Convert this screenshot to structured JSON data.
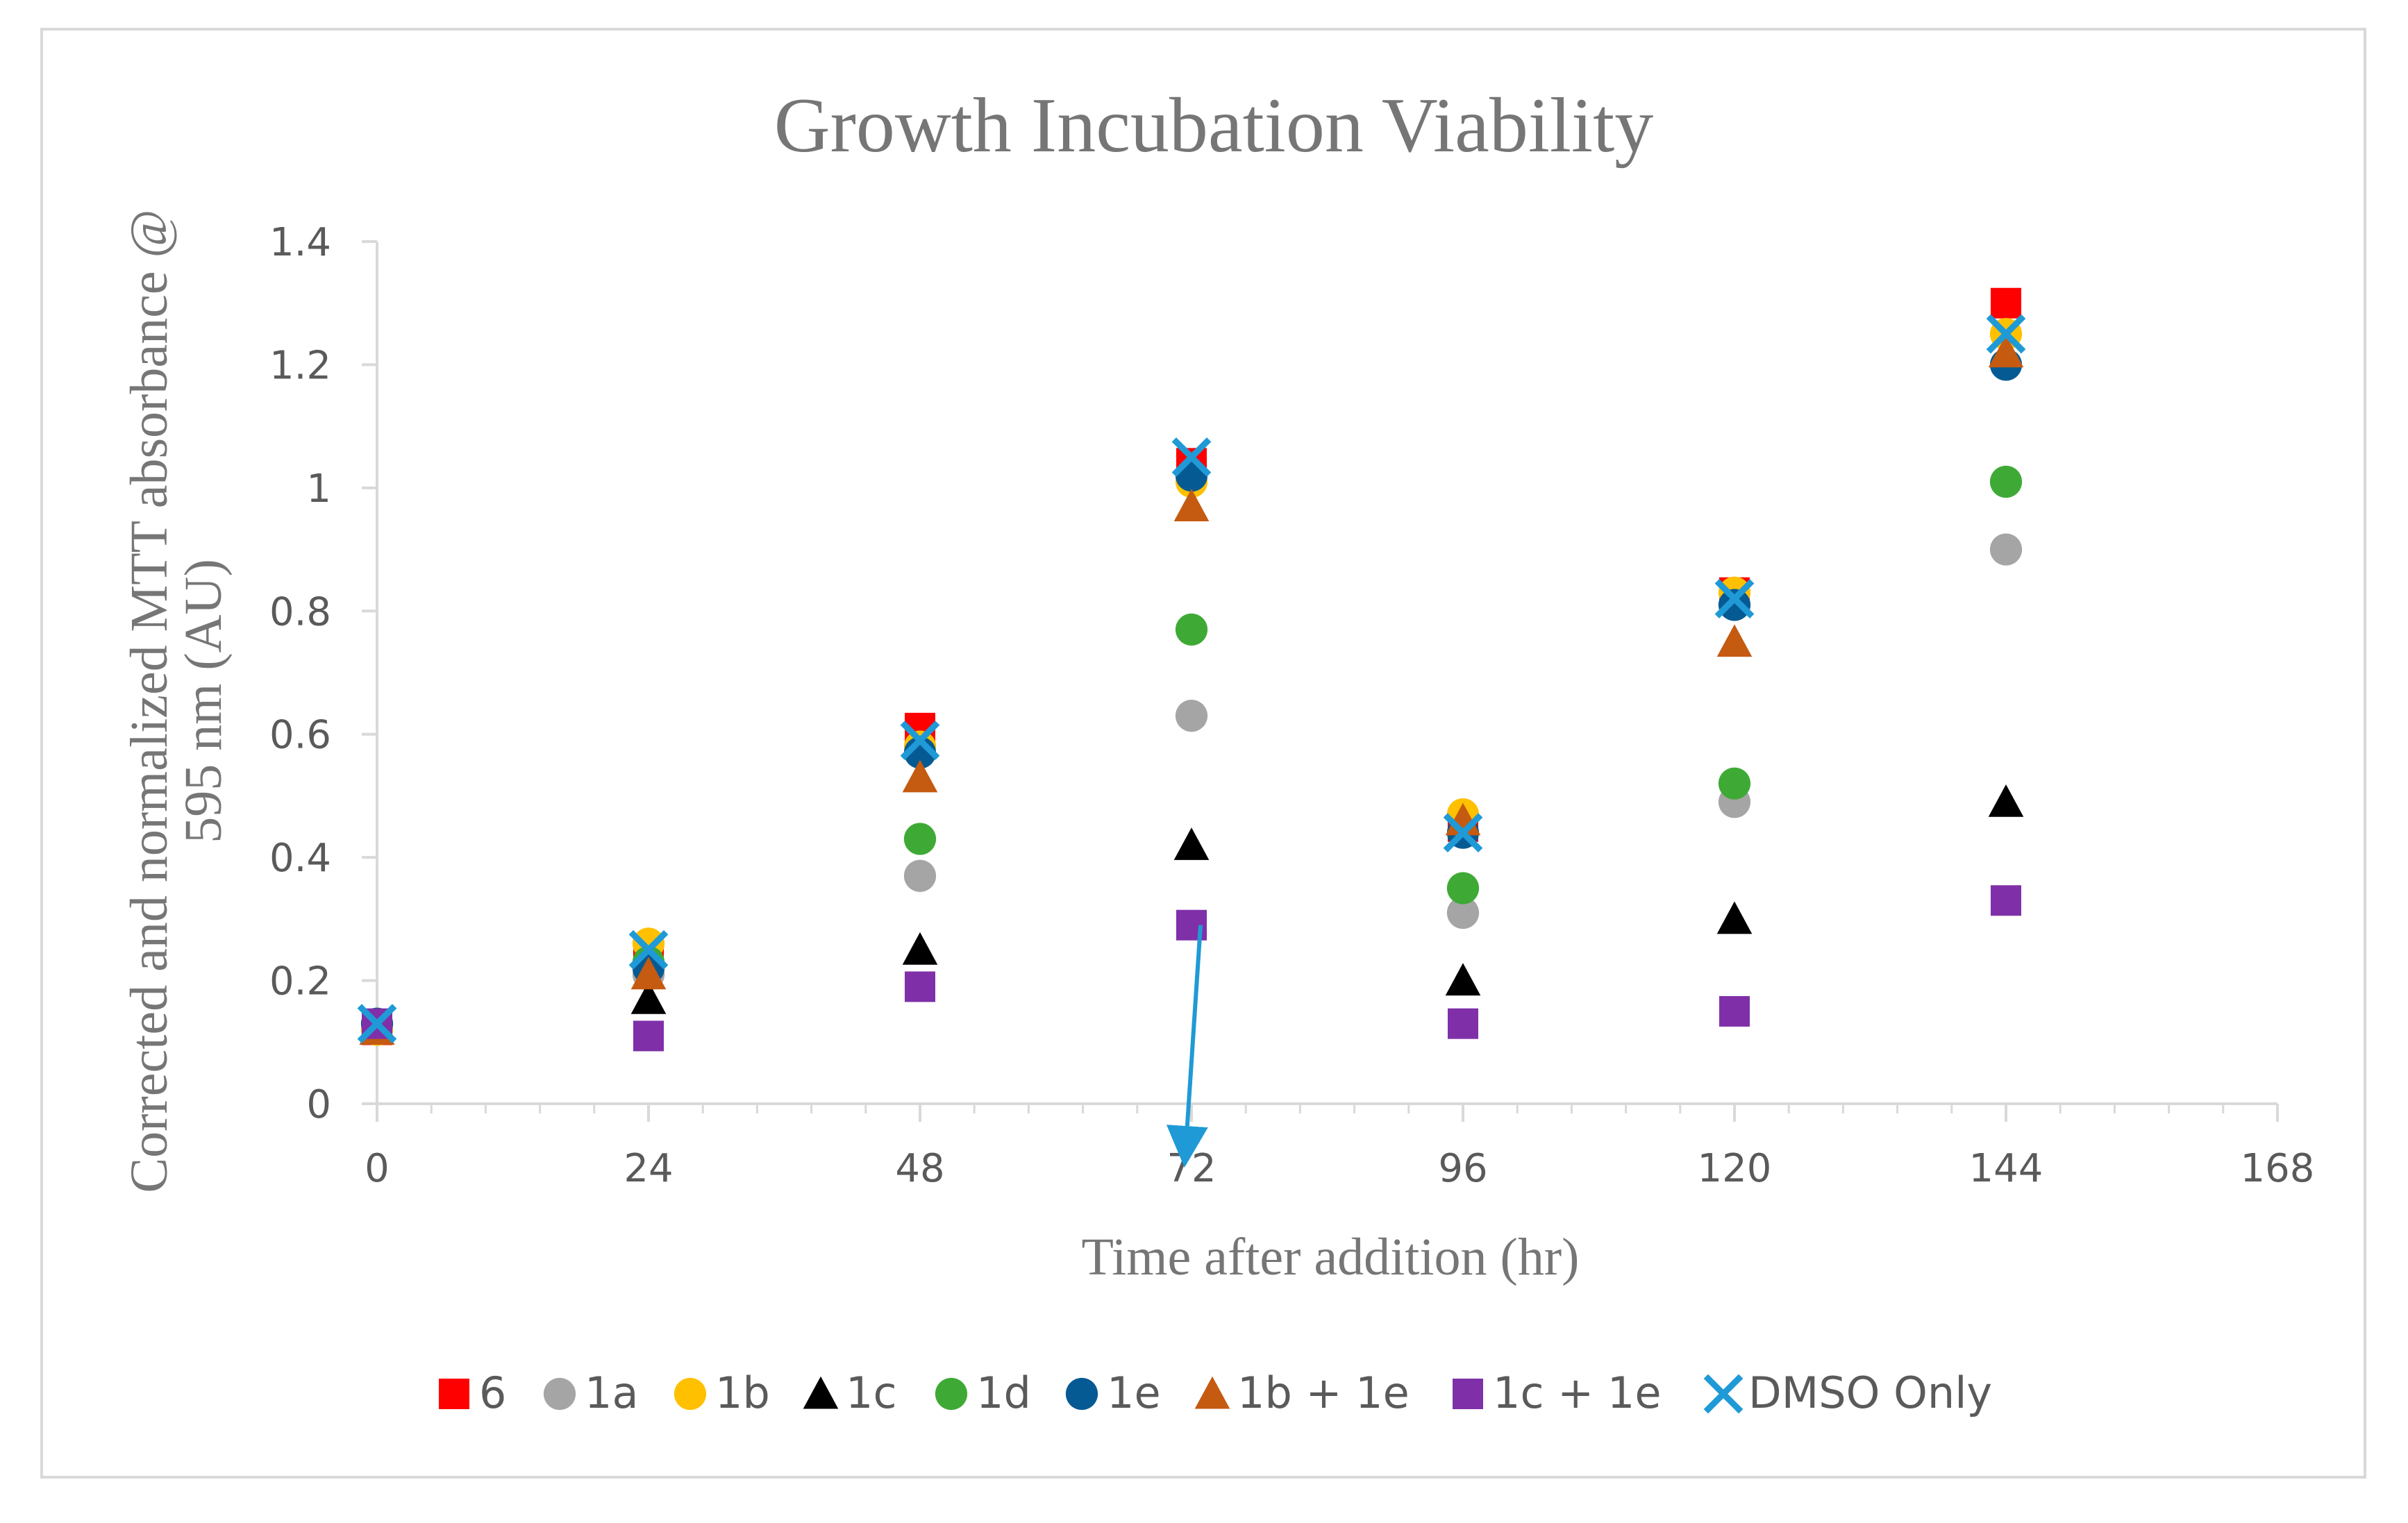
{
  "chart_data": {
    "type": "scatter",
    "title": "Growth Incubation Viability",
    "xlabel": "Time after addition (hr)",
    "ylabel_line1": "Corrected and normalized MTT absorbance @",
    "ylabel_line2": "595 nm (AU)",
    "xlim": [
      0,
      168
    ],
    "ylim": [
      0,
      1.4
    ],
    "x_ticks": [
      0,
      24,
      48,
      72,
      96,
      120,
      144,
      168
    ],
    "x_tick_labels": [
      "0",
      "24",
      "48",
      "72",
      "96",
      "120",
      "144",
      "168"
    ],
    "y_ticks": [
      0,
      0.2,
      0.4,
      0.6,
      0.8,
      1.0,
      1.2,
      1.4
    ],
    "y_tick_labels": [
      "0",
      "0.2",
      "0.4",
      "0.6",
      "0.8",
      "1",
      "1.2",
      "1.4"
    ],
    "x_minor_step": 4.8,
    "legend_position": "bottom",
    "x": [
      0,
      24,
      48,
      72,
      96,
      120,
      144
    ],
    "series": [
      {
        "name": "6",
        "marker": "square",
        "color": "#ff0000",
        "values": [
          0.12,
          0.25,
          0.61,
          1.04,
          0.45,
          0.83,
          1.3
        ]
      },
      {
        "name": "1a",
        "marker": "circle",
        "color": "#a5a5a5",
        "values": [
          0.12,
          0.21,
          0.37,
          0.63,
          0.31,
          0.49,
          0.9
        ]
      },
      {
        "name": "1b",
        "marker": "circle",
        "color": "#ffc000",
        "values": [
          0.12,
          0.26,
          0.58,
          1.01,
          0.47,
          0.83,
          1.25
        ]
      },
      {
        "name": "1c",
        "marker": "triangle",
        "color": "#000000",
        "values": [
          0.12,
          0.17,
          0.25,
          0.42,
          0.2,
          0.3,
          0.49
        ]
      },
      {
        "name": "1d",
        "marker": "circle",
        "color": "#3eaa35",
        "values": [
          0.13,
          0.23,
          0.43,
          0.77,
          0.35,
          0.52,
          1.01
        ]
      },
      {
        "name": "1e",
        "marker": "circle",
        "color": "#065a93",
        "values": [
          0.13,
          0.22,
          0.57,
          1.02,
          0.44,
          0.81,
          1.2
        ]
      },
      {
        "name": "1b + 1e",
        "marker": "triangle",
        "color": "#c55a11",
        "values": [
          0.12,
          0.21,
          0.53,
          0.97,
          0.46,
          0.75,
          1.22
        ]
      },
      {
        "name": "1c + 1e",
        "marker": "square",
        "color": "#7f30a8",
        "values": [
          0.13,
          0.11,
          0.19,
          0.29,
          0.13,
          0.15,
          0.33
        ]
      },
      {
        "name": "DMSO Only",
        "marker": "x",
        "color": "#1f9ad6",
        "values": [
          0.13,
          0.25,
          0.59,
          1.05,
          0.44,
          0.82,
          1.25
        ]
      }
    ],
    "annotation": {
      "type": "arrow",
      "color": "#1f9ad6",
      "from": [
        72.8,
        0.29
      ],
      "to": [
        71.5,
        -0.07
      ]
    }
  }
}
